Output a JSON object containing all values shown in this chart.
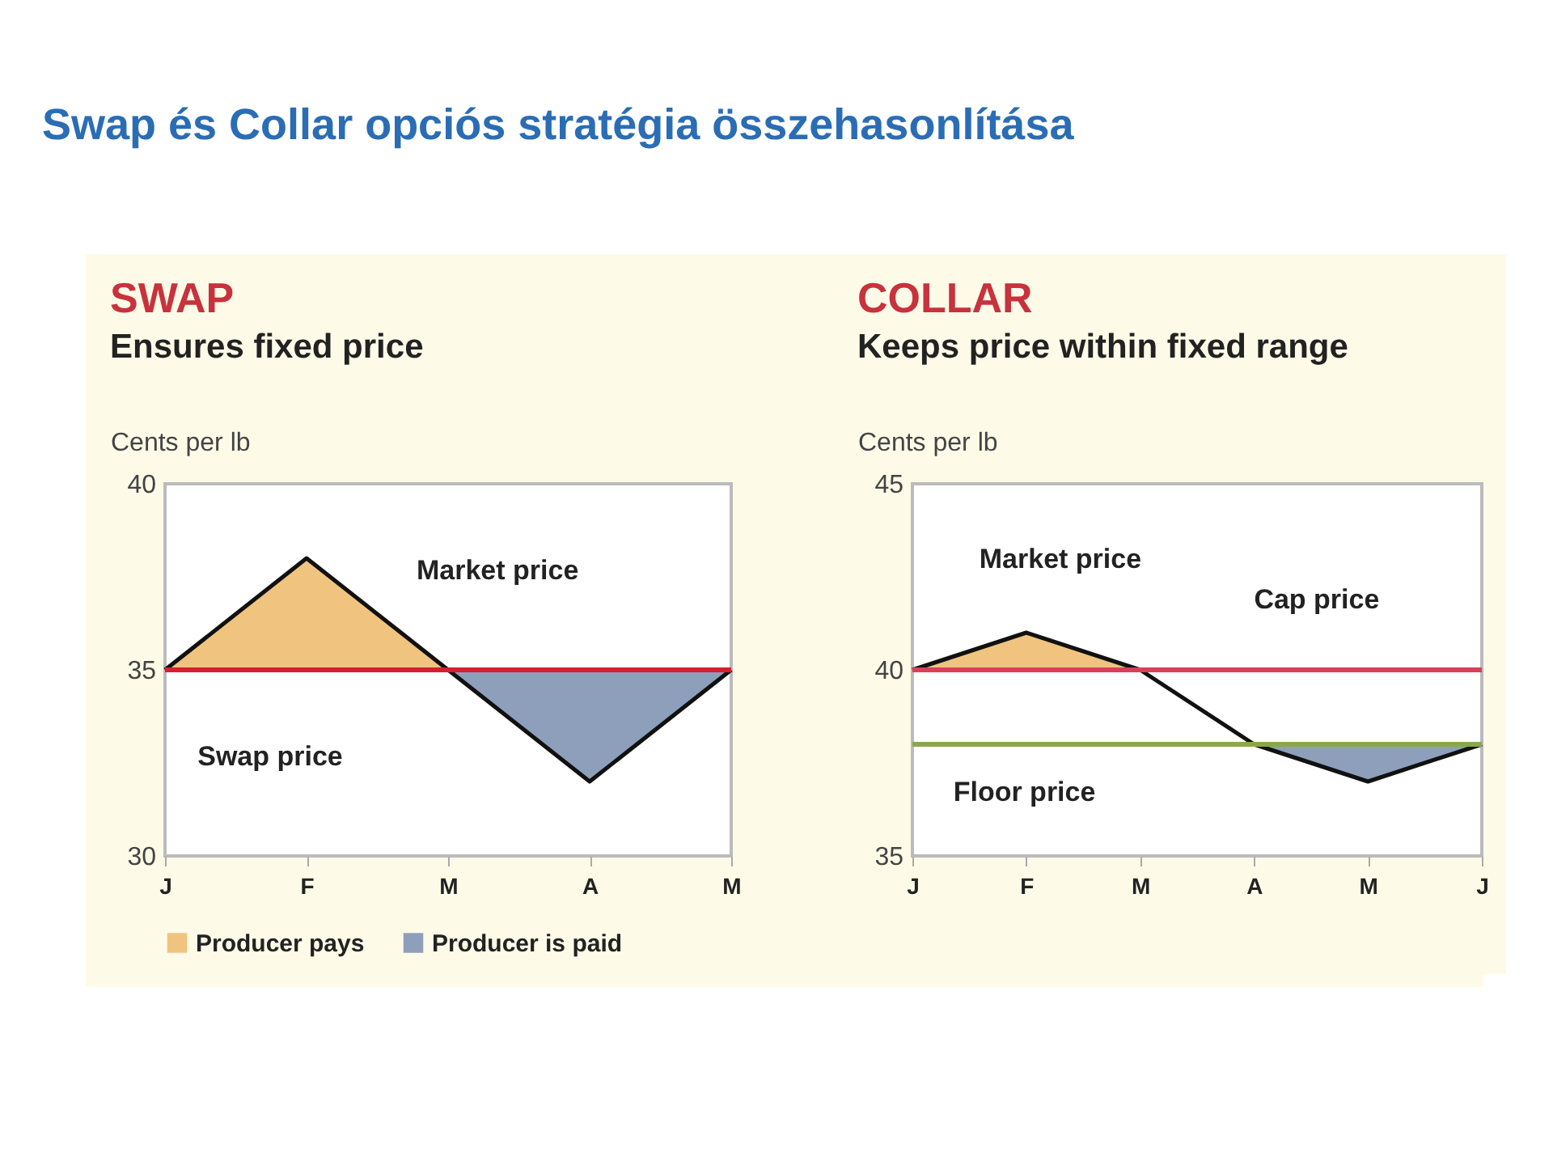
{
  "chart_data": [
    {
      "type": "line",
      "title": "SWAP",
      "subtitle": "Ensures fixed price",
      "ylabel": "Cents per lb",
      "annotations": [
        "Swap és Collar opciós stratégia összehasonlítása"
      ],
      "categories": [
        "J",
        "F",
        "M",
        "A",
        "M"
      ],
      "ylim": [
        30,
        40
      ],
      "yticks": [
        30,
        35,
        40
      ],
      "legend": "bottom",
      "series": [
        {
          "name": "Producer pays",
          "type": "area",
          "color": "#f0c47f",
          "values": [
            35,
            38,
            35,
            null,
            null
          ]
        },
        {
          "name": "Producer is paid",
          "type": "area",
          "color": "#8e9fbb",
          "values": [
            null,
            null,
            35,
            32,
            35
          ]
        },
        {
          "name": "Market price",
          "type": "line",
          "color": "#111111",
          "values": [
            35,
            38,
            35,
            32,
            35
          ]
        }
      ],
      "ref_lines": [
        {
          "axis": "y",
          "value": 35,
          "label": "Swap price",
          "color": "#d42030"
        }
      ]
    },
    {
      "type": "line",
      "title": "COLLAR",
      "subtitle": "Keeps price within fixed range",
      "ylabel": "Cents per lb",
      "categories": [
        "J",
        "F",
        "M",
        "A",
        "M",
        "J"
      ],
      "ylim": [
        35,
        45
      ],
      "yticks": [
        35,
        40,
        45
      ],
      "series": [
        {
          "type": "area",
          "color": "#f0c47f",
          "values": [
            40,
            41,
            40,
            null,
            null,
            null
          ]
        },
        {
          "type": "area",
          "color": "#8e9fbb",
          "values": [
            null,
            null,
            null,
            38,
            37,
            38
          ]
        },
        {
          "name": "Market price",
          "type": "line",
          "color": "#111111",
          "values": [
            40,
            41,
            40,
            38,
            37,
            38
          ]
        }
      ],
      "ref_lines": [
        {
          "axis": "y",
          "value": 40,
          "label": "Cap price",
          "color": "#d8405a"
        },
        {
          "axis": "y",
          "value": 38,
          "label": "Floor price",
          "color": "#8aa84a"
        }
      ]
    }
  ]
}
